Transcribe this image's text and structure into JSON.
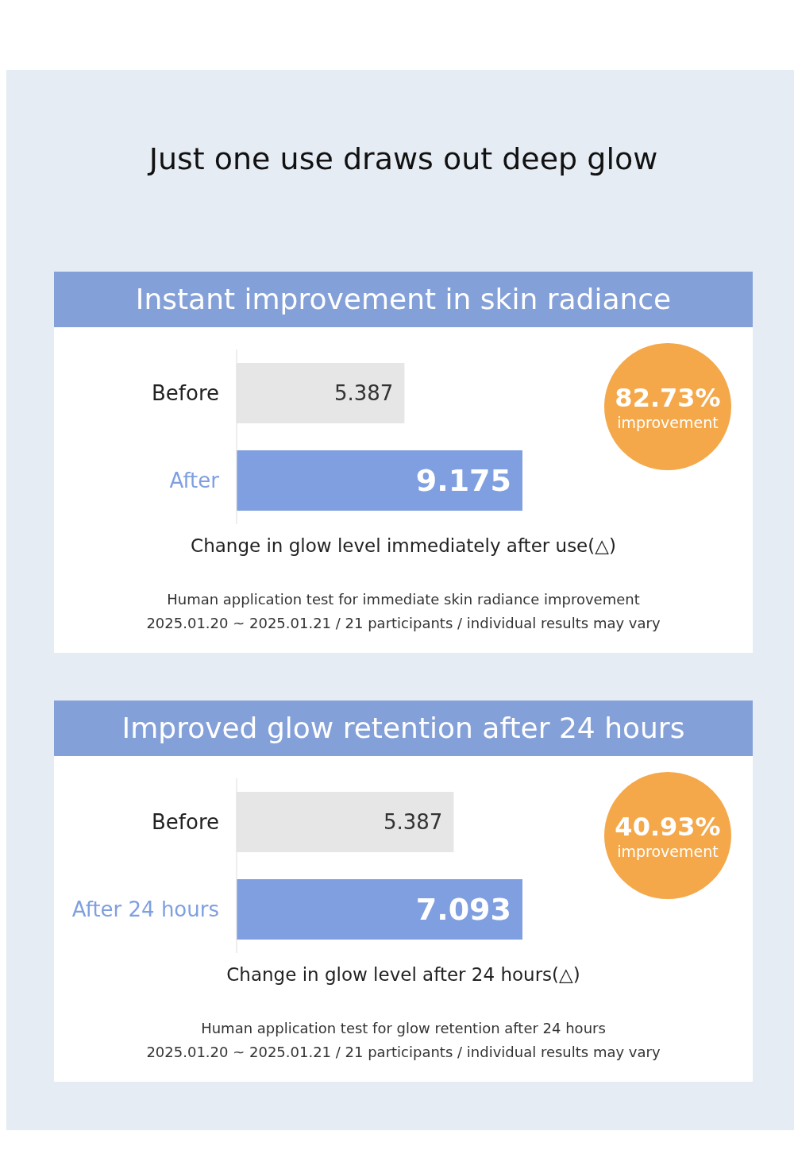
{
  "chart_data": [
    {
      "type": "bar",
      "orientation": "horizontal",
      "title": "Just one use draws out deep glow",
      "subtitle": "Instant improvement in skin radiance",
      "categories": [
        "Before",
        "After"
      ],
      "values": [
        5.387,
        9.175
      ],
      "colors": [
        "#e6e6e6",
        "#7f9fe0"
      ],
      "data_labels": true,
      "xlabel": "Change in glow level immediately after use(△)",
      "annotations": [
        "82.73% improvement",
        "Human application test for immediate skin radiance improvement",
        "2025.01.20 ~ 2025.01.21 / 21 participants / individual results may vary"
      ]
    },
    {
      "type": "bar",
      "orientation": "horizontal",
      "subtitle": "Improved glow retention after 24 hours",
      "categories": [
        "Before",
        "After 24 hours"
      ],
      "values": [
        5.387,
        7.093
      ],
      "colors": [
        "#e6e6e6",
        "#7f9fe0"
      ],
      "data_labels": true,
      "xlabel": "Change in glow level after 24 hours(△)",
      "annotations": [
        "40.93% improvement",
        "Human application test for glow retention after 24 hours",
        "2025.01.20 ~ 2025.01.21 / 21 participants / individual results may vary"
      ]
    }
  ]
}
